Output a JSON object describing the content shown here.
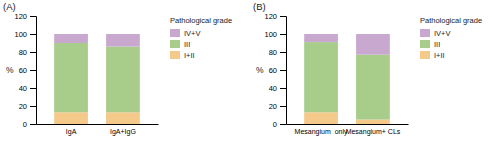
{
  "chart_data": [
    {
      "type": "bar",
      "stacked": true,
      "title": "(A)",
      "y_label": "%",
      "legend_title": "Pathological grade",
      "legend": "upper right",
      "grid": false,
      "categories": [
        "IgA",
        "IgA+IgG"
      ],
      "series": [
        {
          "name": "I+II",
          "color": "#f5c98a",
          "values": [
            13,
            13
          ]
        },
        {
          "name": "III",
          "color": "#a8cc8a",
          "values": [
            77,
            73
          ]
        },
        {
          "name": "IV+V",
          "color": "#c9a8d0",
          "values": [
            10,
            14
          ]
        }
      ],
      "ylim": [
        0,
        120
      ],
      "yticks": [
        0,
        20,
        40,
        60,
        80,
        100,
        120
      ]
    },
    {
      "type": "bar",
      "stacked": true,
      "title": "(B)",
      "y_label": "%",
      "legend_title": "Pathological grade",
      "legend": "upper right",
      "grid": false,
      "categories": [
        "Mesangium  only",
        "Mesangium+ CLs"
      ],
      "series": [
        {
          "name": "I+II",
          "color": "#f5c98a",
          "values": [
            13,
            5
          ]
        },
        {
          "name": "III",
          "color": "#a8cc8a",
          "values": [
            78,
            72
          ]
        },
        {
          "name": "IV+V",
          "color": "#c9a8d0",
          "values": [
            9,
            23
          ]
        }
      ],
      "ylim": [
        0,
        120
      ],
      "yticks": [
        0,
        20,
        40,
        60,
        80,
        100,
        120
      ]
    }
  ]
}
